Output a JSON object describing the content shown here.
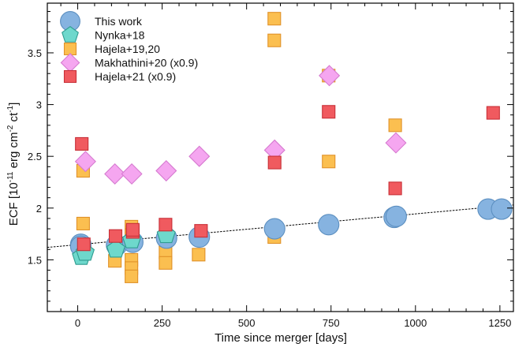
{
  "chart_data": {
    "type": "scatter",
    "xlabel": "Time since merger [days]",
    "ylabel": "ECF [10^-11 erg cm^-2 ct^-1]",
    "ylabel_parts": {
      "pre": "ECF [10",
      "sup1": "-11",
      "mid1": " erg cm",
      "sup2": "-2",
      "mid2": " ct",
      "sup3": "-1",
      "post": "]"
    },
    "xlim": [
      -90,
      1290
    ],
    "ylim": [
      1.0,
      3.98
    ],
    "xticks": [
      0,
      250,
      500,
      750,
      1000,
      1250
    ],
    "xtick_labels": [
      "0",
      "250",
      "500",
      "750",
      "1000",
      "1250"
    ],
    "yticks": [
      1.5,
      2.0,
      2.5,
      3.0,
      3.5
    ],
    "ytick_labels": [
      "1.5",
      "2",
      "2.5",
      "3",
      "3.5"
    ],
    "legend_position": "top-left",
    "grid": false,
    "trend_line": {
      "style": "dashed",
      "x": [
        -90,
        1290
      ],
      "y": [
        1.62,
        2.03
      ]
    },
    "series": [
      {
        "name": "Hajela+19,20",
        "marker": "square",
        "color": "#fbbf50",
        "edge": "#e0922a",
        "x": [
          16,
          16,
          159,
          159,
          159,
          159,
          159,
          110,
          260,
          260,
          260,
          358,
          582,
          582,
          582,
          743,
          743,
          940
        ],
        "y": [
          2.36,
          1.85,
          1.82,
          1.74,
          1.5,
          1.42,
          1.34,
          1.49,
          1.57,
          1.47,
          1.69,
          1.55,
          3.83,
          3.62,
          1.72,
          3.28,
          2.45,
          2.8
        ]
      },
      {
        "name": "Makhathini+20 (x0.9)",
        "marker": "diamond",
        "color": "#f5a6f0",
        "edge": "#d67ad0",
        "x": [
          23,
          110,
          160,
          262,
          360,
          583,
          745,
          942
        ],
        "y": [
          2.45,
          2.33,
          2.33,
          2.36,
          2.5,
          2.56,
          3.28,
          2.63
        ]
      },
      {
        "name": "This work",
        "marker": "circle",
        "color": "#86b3e0",
        "edge": "#5c8fc0",
        "x": [
          9,
          9,
          115,
          163,
          263,
          360,
          583,
          743,
          937,
          943,
          1215,
          1255
        ],
        "y": [
          1.65,
          1.63,
          1.64,
          1.67,
          1.71,
          1.72,
          1.8,
          1.84,
          1.91,
          1.92,
          1.99,
          1.99
        ]
      },
      {
        "name": "Nynka+18",
        "marker": "pentagon",
        "color": "#6ed8cc",
        "edge": "#2f9c90",
        "x": [
          11,
          22,
          113,
          160,
          262
        ],
        "y": [
          1.53,
          1.57,
          1.6,
          1.69,
          1.74
        ]
      },
      {
        "name": "Hajela+21  (x0.9)",
        "marker": "square",
        "color": "#f05a5f",
        "edge": "#c83038",
        "x": [
          12,
          18,
          112,
          163,
          163,
          260,
          365,
          583,
          743,
          940,
          1230
        ],
        "y": [
          2.62,
          1.65,
          1.73,
          1.77,
          1.79,
          1.84,
          1.78,
          2.44,
          2.93,
          2.19,
          2.92
        ]
      }
    ],
    "legend_order": [
      "This work",
      "Nynka+18",
      "Hajela+19,20",
      "Makhathini+20 (x0.9)",
      "Hajela+21  (x0.9)"
    ]
  }
}
